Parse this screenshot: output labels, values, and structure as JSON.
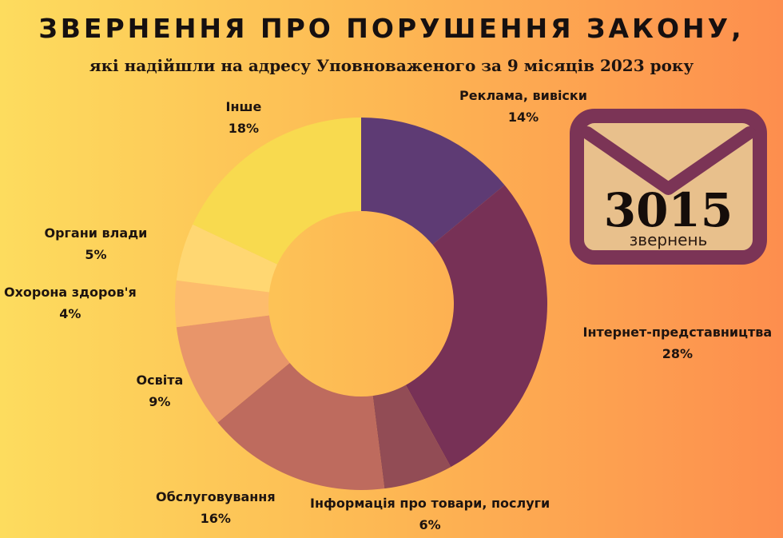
{
  "header": {
    "title": "ЗВЕРНЕННЯ ПРО ПОРУШЕННЯ ЗАКОНУ,",
    "subtitle": "які надійшли на адресу Уповноваженого за 9 місяців 2023 року"
  },
  "badge": {
    "count": "3015",
    "label": "звернень",
    "icon": "envelope-icon",
    "color": "#7b3456",
    "fill": "#e8c08c"
  },
  "chart_data": {
    "type": "pie",
    "style": "donut",
    "title": "ЗВЕРНЕННЯ ПРО ПОРУШЕННЯ ЗАКОНУ,",
    "slices": [
      {
        "label": "Реклама, вивіски",
        "value": 14,
        "value_label": "14%",
        "color": "#5e3b74"
      },
      {
        "label": "Інтернет-представництва",
        "value": 28,
        "value_label": "28%",
        "color": "#773156"
      },
      {
        "label": "Інформація про товари, послуги",
        "value": 6,
        "value_label": "6%",
        "color": "#924c55"
      },
      {
        "label": "Обслуговування",
        "value": 16,
        "value_label": "16%",
        "color": "#be6b5e"
      },
      {
        "label": "Освіта",
        "value": 9,
        "value_label": "9%",
        "color": "#e8956a"
      },
      {
        "label": "Охорона здоров'я",
        "value": 4,
        "value_label": "4%",
        "color": "#fdbc6c"
      },
      {
        "label": "Органи влади",
        "value": 5,
        "value_label": "5%",
        "color": "#ffd772"
      },
      {
        "label": "Інше",
        "value": 18,
        "value_label": "18%",
        "color": "#f8da4f"
      }
    ]
  }
}
